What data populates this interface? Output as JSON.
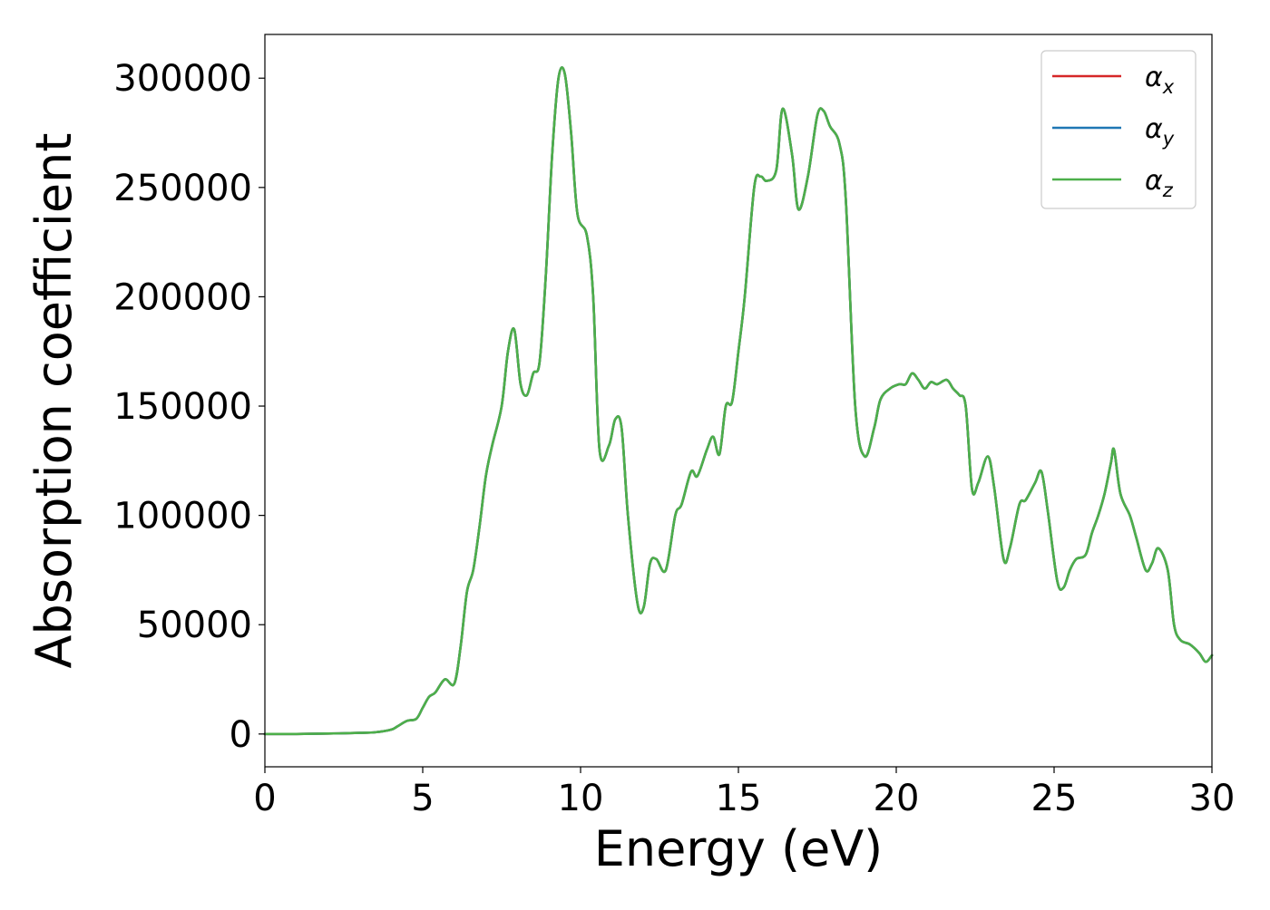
{
  "chart_data": {
    "type": "line",
    "title": "",
    "xlabel": "Energy (eV)",
    "ylabel": "Absorption coefficient",
    "xlim": [
      0,
      30
    ],
    "ylim": [
      -15000,
      320000
    ],
    "xticks": [
      0,
      5,
      10,
      15,
      20,
      25,
      30
    ],
    "yticks": [
      0,
      50000,
      100000,
      150000,
      200000,
      250000,
      300000
    ],
    "xtick_labels": [
      "0",
      "5",
      "10",
      "15",
      "20",
      "25",
      "30"
    ],
    "ytick_labels": [
      "0",
      "50000",
      "100000",
      "150000",
      "200000",
      "250000",
      "300000"
    ],
    "grid": false,
    "legend_position": "top-right",
    "x": [
      0,
      1,
      2,
      3,
      3.5,
      4,
      4.2,
      4.5,
      4.8,
      5.0,
      5.2,
      5.4,
      5.7,
      6.0,
      6.2,
      6.4,
      6.6,
      6.8,
      7.0,
      7.2,
      7.5,
      7.7,
      7.9,
      8.1,
      8.3,
      8.5,
      8.7,
      8.9,
      9.1,
      9.3,
      9.5,
      9.7,
      9.9,
      10.2,
      10.4,
      10.6,
      10.9,
      11.1,
      11.3,
      11.5,
      11.8,
      12.0,
      12.2,
      12.4,
      12.7,
      13.0,
      13.2,
      13.5,
      13.7,
      14.0,
      14.2,
      14.4,
      14.6,
      14.8,
      15.0,
      15.2,
      15.5,
      15.7,
      15.9,
      16.2,
      16.4,
      16.7,
      16.9,
      17.2,
      17.5,
      17.7,
      17.9,
      18.2,
      18.4,
      18.7,
      19.0,
      19.3,
      19.5,
      19.8,
      20.1,
      20.3,
      20.5,
      20.7,
      20.9,
      21.1,
      21.3,
      21.6,
      21.8,
      22.0,
      22.2,
      22.4,
      22.6,
      22.9,
      23.1,
      23.4,
      23.6,
      23.9,
      24.1,
      24.4,
      24.6,
      24.8,
      25.1,
      25.3,
      25.5,
      25.7,
      26.0,
      26.2,
      26.4,
      26.6,
      26.8,
      26.9,
      27.1,
      27.4,
      27.6,
      27.9,
      28.1,
      28.3,
      28.6,
      28.8,
      29.0,
      29.3,
      29.6,
      29.8,
      30.0
    ],
    "series": [
      {
        "name": "α_x",
        "color": "#d62728",
        "values": [
          0,
          0,
          200,
          500,
          800,
          2000,
          3500,
          6000,
          7000,
          12000,
          17000,
          19000,
          25000,
          23000,
          40000,
          65000,
          75000,
          95000,
          118000,
          132000,
          150000,
          175000,
          185000,
          160000,
          155000,
          165000,
          170000,
          210000,
          265000,
          300000,
          302000,
          275000,
          238000,
          228000,
          200000,
          130000,
          132000,
          144000,
          140000,
          100000,
          60000,
          58000,
          78000,
          80000,
          75000,
          100000,
          105000,
          120000,
          118000,
          130000,
          136000,
          128000,
          150000,
          152000,
          175000,
          200000,
          250000,
          255000,
          253000,
          258000,
          286000,
          265000,
          240000,
          255000,
          283000,
          285000,
          278000,
          270000,
          245000,
          150000,
          127000,
          140000,
          153000,
          158000,
          160000,
          160000,
          165000,
          162000,
          158000,
          161000,
          160000,
          162000,
          158000,
          155000,
          150000,
          112000,
          115000,
          127000,
          113000,
          80000,
          85000,
          105000,
          107000,
          115000,
          120000,
          102000,
          70000,
          67000,
          75000,
          80000,
          82000,
          92000,
          100000,
          110000,
          124000,
          130000,
          110000,
          100000,
          90000,
          75000,
          78000,
          85000,
          75000,
          50000,
          43000,
          41000,
          37000,
          33000,
          36000
        ]
      },
      {
        "name": "α_y",
        "color": "#1f77b4",
        "values": [
          0,
          0,
          200,
          500,
          800,
          2000,
          3500,
          6000,
          7000,
          12000,
          17000,
          19000,
          25000,
          23000,
          40000,
          65000,
          75000,
          95000,
          118000,
          132000,
          150000,
          175000,
          185000,
          160000,
          155000,
          165000,
          170000,
          210000,
          265000,
          300000,
          302000,
          275000,
          238000,
          228000,
          200000,
          130000,
          132000,
          144000,
          140000,
          100000,
          60000,
          58000,
          78000,
          80000,
          75000,
          100000,
          105000,
          120000,
          118000,
          130000,
          136000,
          128000,
          150000,
          152000,
          175000,
          200000,
          250000,
          255000,
          253000,
          258000,
          286000,
          265000,
          240000,
          255000,
          283000,
          285000,
          278000,
          270000,
          245000,
          150000,
          127000,
          140000,
          153000,
          158000,
          160000,
          160000,
          165000,
          162000,
          158000,
          161000,
          160000,
          162000,
          158000,
          155000,
          150000,
          112000,
          115000,
          127000,
          113000,
          80000,
          85000,
          105000,
          107000,
          115000,
          120000,
          102000,
          70000,
          67000,
          75000,
          80000,
          82000,
          92000,
          100000,
          110000,
          124000,
          130000,
          110000,
          100000,
          90000,
          75000,
          78000,
          85000,
          75000,
          50000,
          43000,
          41000,
          37000,
          33000,
          36000
        ]
      },
      {
        "name": "α_z",
        "color": "#4daf4a",
        "values": [
          0,
          0,
          200,
          500,
          800,
          2000,
          3500,
          6000,
          7000,
          12000,
          17000,
          19000,
          25000,
          23000,
          40000,
          65000,
          75000,
          95000,
          118000,
          132000,
          150000,
          175000,
          185000,
          160000,
          155000,
          165000,
          170000,
          210000,
          265000,
          300000,
          302000,
          275000,
          238000,
          228000,
          200000,
          130000,
          132000,
          144000,
          140000,
          100000,
          60000,
          58000,
          78000,
          80000,
          75000,
          100000,
          105000,
          120000,
          118000,
          130000,
          136000,
          128000,
          150000,
          152000,
          175000,
          200000,
          250000,
          255000,
          253000,
          258000,
          286000,
          265000,
          240000,
          255000,
          283000,
          285000,
          278000,
          270000,
          245000,
          150000,
          127000,
          140000,
          153000,
          158000,
          160000,
          160000,
          165000,
          162000,
          158000,
          161000,
          160000,
          162000,
          158000,
          155000,
          150000,
          112000,
          115000,
          127000,
          113000,
          80000,
          85000,
          105000,
          107000,
          115000,
          120000,
          102000,
          70000,
          67000,
          75000,
          80000,
          82000,
          92000,
          100000,
          110000,
          124000,
          130000,
          110000,
          100000,
          90000,
          75000,
          78000,
          85000,
          75000,
          50000,
          43000,
          41000,
          37000,
          33000,
          36000
        ]
      }
    ],
    "legend": [
      {
        "base": "α",
        "sub": "x",
        "color": "#d62728"
      },
      {
        "base": "α",
        "sub": "y",
        "color": "#1f77b4"
      },
      {
        "base": "α",
        "sub": "z",
        "color": "#4daf4a"
      }
    ]
  }
}
